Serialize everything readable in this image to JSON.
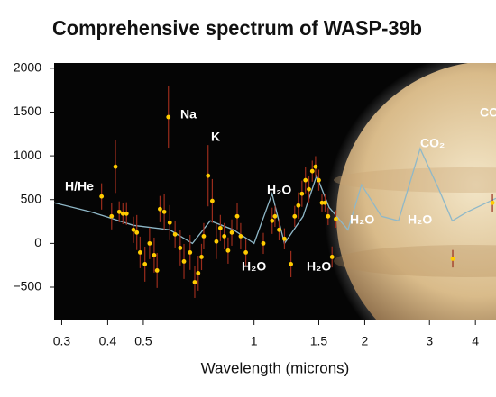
{
  "chart_data": {
    "type": "scatter",
    "title": "Comprehensive spectrum of WASP-39b",
    "x_label": "Wavelength (microns)",
    "log_x": true,
    "xlim": [
      0.286,
      4.55
    ],
    "xticks": [
      0.3,
      0.4,
      0.5,
      1,
      1.5,
      2,
      3,
      4
    ],
    "ylim": [
      -870,
      2060
    ],
    "yticks": [
      2000,
      1500,
      1000,
      500,
      0,
      {
        "value": -500,
        "label": "−500"
      }
    ],
    "annotations": [
      "H/He",
      "Na",
      "K",
      "H₂O",
      "H₂O",
      "H₂O",
      "H₂O",
      "H₂O",
      "CO₂",
      "CO"
    ],
    "series": [
      {
        "color": "#ffcc00",
        "error_color": "#9a2c1c",
        "x": [
          0.385,
          0.42,
          0.41,
          0.43,
          0.44,
          0.45,
          0.47,
          0.48,
          0.49,
          0.505,
          0.52,
          0.535,
          0.545,
          0.555,
          0.57,
          0.585,
          0.59,
          0.61,
          0.63,
          0.645,
          0.67,
          0.69,
          0.705,
          0.72,
          0.73,
          0.75,
          0.77,
          0.79,
          0.81,
          0.83,
          0.85,
          0.87,
          0.9,
          0.92,
          0.95,
          1.06,
          1.12,
          1.14,
          1.17,
          1.21,
          1.26,
          1.29,
          1.32,
          1.35,
          1.38,
          1.41,
          1.44,
          1.47,
          1.5,
          1.53,
          1.56,
          1.59,
          1.63,
          1.67,
          3.47,
          4.45
        ],
        "values": [
          536,
          876,
          310,
          360,
          340,
          340,
          155,
          124,
          -103,
          -237,
          0,
          -134,
          -309,
          392,
          360,
          1443,
          237,
          103,
          -52,
          -206,
          -103,
          -443,
          -340,
          -155,
          82,
          773,
          485,
          21,
          175,
          82,
          -82,
          124,
          310,
          82,
          -103,
          0,
          258,
          309,
          155,
          52,
          -237,
          309,
          433,
          567,
          722,
          619,
          825,
          876,
          722,
          464,
          464,
          309,
          -155,
          278,
          -175,
          464
        ],
        "errors": [
          150,
          300,
          150,
          120,
          120,
          130,
          150,
          200,
          180,
          200,
          180,
          200,
          200,
          150,
          200,
          350,
          200,
          150,
          200,
          200,
          200,
          180,
          200,
          150,
          150,
          350,
          250,
          200,
          150,
          150,
          150,
          150,
          150,
          150,
          150,
          120,
          150,
          120,
          120,
          120,
          150,
          120,
          150,
          150,
          150,
          150,
          120,
          120,
          120,
          100,
          100,
          100,
          120,
          100,
          100,
          100
        ]
      }
    ],
    "model": {
      "color": "#8fb8c8",
      "x": [
        0.286,
        0.36,
        0.47,
        0.59,
        0.68,
        0.76,
        0.88,
        1.0,
        1.12,
        1.21,
        1.36,
        1.48,
        1.6,
        1.8,
        1.96,
        2.22,
        2.47,
        2.83,
        3.18,
        3.46,
        3.8,
        4.55
      ],
      "values": [
        464,
        360,
        206,
        155,
        0,
        258,
        155,
        0,
        567,
        0,
        309,
        773,
        412,
        155,
        670,
        309,
        258,
        1082,
        619,
        258,
        360,
        515
      ]
    }
  }
}
